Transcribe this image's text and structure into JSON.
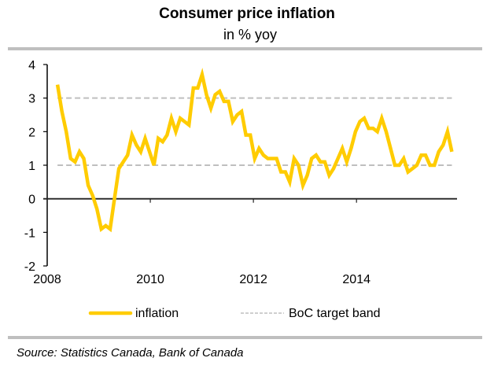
{
  "chart_data": {
    "type": "line",
    "title": "Consumer price inflation",
    "subtitle": "in % yoy",
    "xlabel": "",
    "ylabel": "",
    "x_ticks": [
      "2008",
      "2010",
      "2012",
      "2014"
    ],
    "x_tick_values": [
      2008,
      2010,
      2012,
      2014
    ],
    "xlim": [
      2008,
      2015.95
    ],
    "y_ticks": [
      "4",
      "3",
      "2",
      "1",
      "0",
      "-1",
      "-2"
    ],
    "y_tick_values": [
      4,
      3,
      2,
      1,
      0,
      -1,
      -2
    ],
    "ylim": [
      -2,
      4
    ],
    "grid": false,
    "legend_position": "bottom",
    "series": [
      {
        "name": "inflation",
        "color": "#FFCC00",
        "style": "solid",
        "x_start": 2008.2,
        "x_end": 2015.85,
        "values": [
          3.4,
          2.6,
          2.0,
          1.2,
          1.1,
          1.4,
          1.2,
          0.4,
          0.1,
          -0.3,
          -0.9,
          -0.8,
          -0.9,
          0.0,
          0.9,
          1.1,
          1.3,
          1.9,
          1.6,
          1.4,
          1.8,
          1.4,
          1.0,
          1.8,
          1.7,
          1.9,
          2.4,
          2.0,
          2.4,
          2.3,
          2.2,
          3.3,
          3.3,
          3.7,
          3.1,
          2.7,
          3.1,
          3.2,
          2.9,
          2.9,
          2.3,
          2.5,
          2.6,
          1.9,
          1.9,
          1.2,
          1.5,
          1.3,
          1.2,
          1.2,
          1.2,
          0.8,
          0.8,
          0.5,
          1.2,
          1.0,
          0.4,
          0.7,
          1.2,
          1.3,
          1.1,
          1.1,
          0.7,
          0.9,
          1.2,
          1.5,
          1.1,
          1.5,
          2.0,
          2.3,
          2.4,
          2.1,
          2.1,
          2.0,
          2.4,
          2.0,
          1.5,
          1.0,
          1.0,
          1.2,
          0.8,
          0.9,
          1.0,
          1.3,
          1.3,
          1.0,
          1.0,
          1.4,
          1.6,
          2.0,
          1.4
        ]
      },
      {
        "name": "BoC target band",
        "color": "#BFBFBF",
        "style": "dashed",
        "bands": [
          1,
          3
        ],
        "x_start": 2008.2,
        "x_end": 2015.85
      }
    ]
  },
  "source": "Source: Statistics Canada, Bank of Canada"
}
